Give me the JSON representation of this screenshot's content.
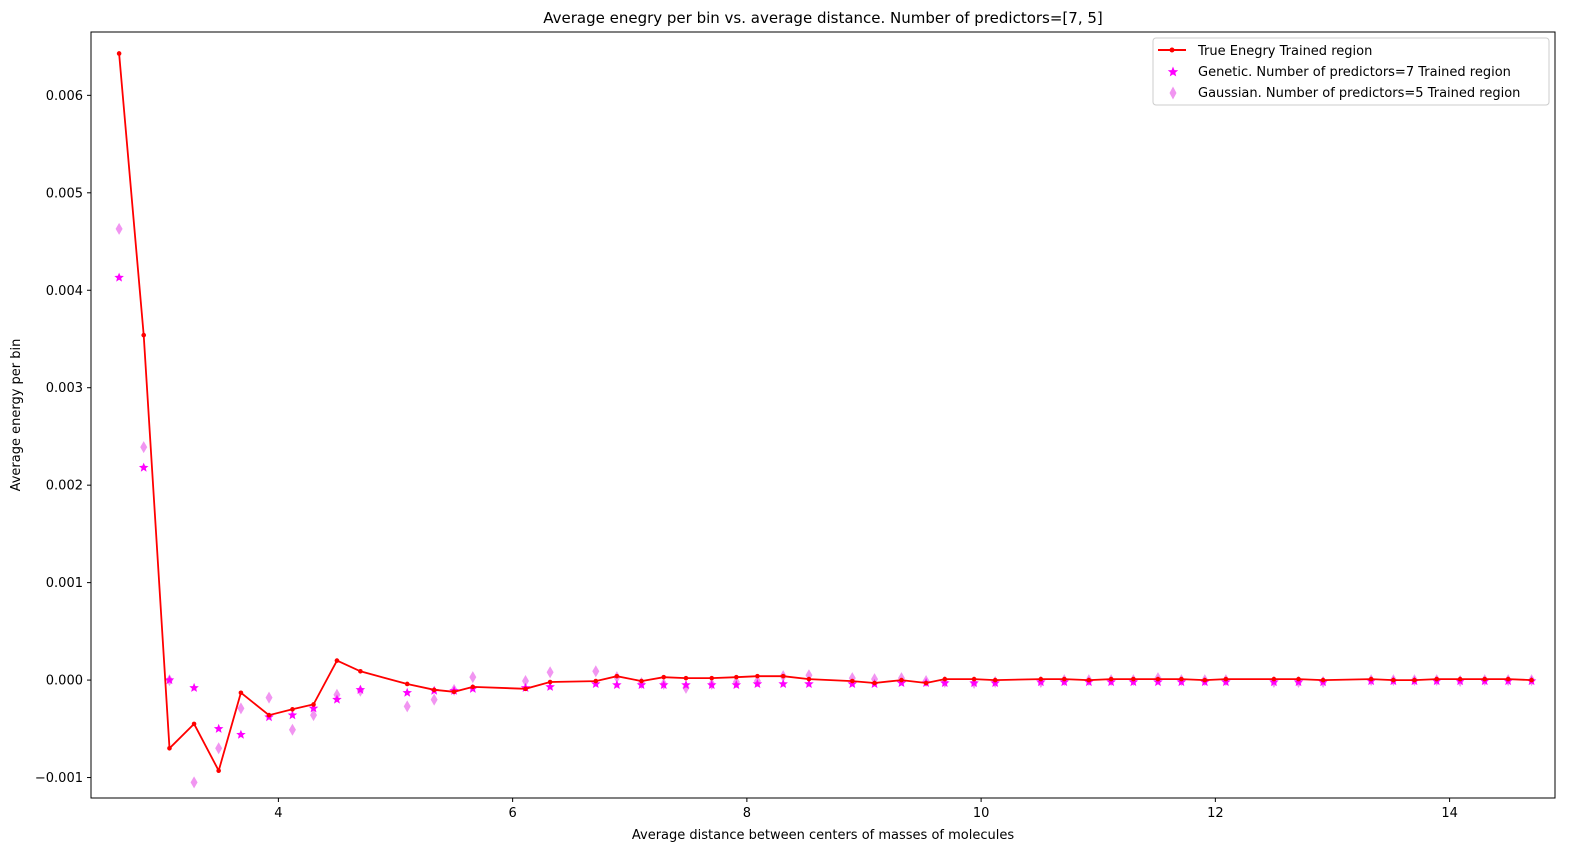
{
  "chart_data": {
    "type": "line",
    "title": "Average enegry per bin vs. average distance. Number of predictors=[7, 5]",
    "xlabel": "Average distance between centers of masses of molecules",
    "ylabel": "Average energy per bin",
    "xlim": [
      2.4,
      14.9
    ],
    "ylim": [
      -0.00121,
      0.00665
    ],
    "xticks": [
      4,
      6,
      8,
      10,
      12,
      14
    ],
    "xtick_labels": [
      "4",
      "6",
      "8",
      "10",
      "12",
      "14"
    ],
    "yticks": [
      -0.001,
      0.0,
      0.001,
      0.002,
      0.003,
      0.004,
      0.005,
      0.006
    ],
    "ytick_labels": [
      "−0.001",
      "0.000",
      "0.001",
      "0.002",
      "0.003",
      "0.004",
      "0.005",
      "0.006"
    ],
    "grid": false,
    "legend_position": "top-right",
    "series": [
      {
        "name": "True Enegry Trained region",
        "kind": "line",
        "color": "#ff0000",
        "marker": "dot",
        "x": [
          2.64,
          2.85,
          3.07,
          3.28,
          3.49,
          3.68,
          3.92,
          4.12,
          4.3,
          4.5,
          4.7,
          5.1,
          5.33,
          5.5,
          5.66,
          6.11,
          6.32,
          6.71,
          6.89,
          7.1,
          7.29,
          7.48,
          7.7,
          7.91,
          8.09,
          8.31,
          8.53,
          8.9,
          9.09,
          9.32,
          9.53,
          9.69,
          9.94,
          10.12,
          10.51,
          10.71,
          10.92,
          11.11,
          11.3,
          11.51,
          11.71,
          11.91,
          12.09,
          12.5,
          12.71,
          12.92,
          13.33,
          13.52,
          13.7,
          13.89,
          14.09,
          14.3,
          14.5,
          14.7
        ],
        "y": [
          0.00643,
          0.00354,
          -0.0007,
          -0.00045,
          -0.00093,
          -0.00013,
          -0.00036,
          -0.0003,
          -0.00025,
          0.0002,
          9e-05,
          -4e-05,
          -0.0001,
          -0.00012,
          -7e-05,
          -9e-05,
          -2e-05,
          -1e-05,
          4e-05,
          -1e-05,
          3e-05,
          2e-05,
          2e-05,
          3e-05,
          4e-05,
          4e-05,
          1e-05,
          -1e-05,
          -3e-05,
          0.0,
          -3e-05,
          1e-05,
          1e-05,
          0.0,
          1e-05,
          1e-05,
          0.0,
          1e-05,
          1e-05,
          1e-05,
          1e-05,
          0.0,
          1e-05,
          1e-05,
          1e-05,
          0.0,
          1e-05,
          0.0,
          0.0,
          1e-05,
          1e-05,
          1e-05,
          1e-05,
          0.0
        ]
      },
      {
        "name": "Genetic. Number of predictors=7 Trained region",
        "kind": "scatter",
        "color": "#ff00ff",
        "marker": "star",
        "x": [
          2.64,
          2.85,
          3.07,
          3.28,
          3.49,
          3.68,
          3.92,
          4.12,
          4.3,
          4.5,
          4.7,
          5.1,
          5.33,
          5.5,
          5.66,
          6.11,
          6.32,
          6.71,
          6.89,
          7.1,
          7.29,
          7.48,
          7.7,
          7.91,
          8.09,
          8.31,
          8.53,
          8.9,
          9.09,
          9.32,
          9.53,
          9.69,
          9.94,
          10.12,
          10.51,
          10.71,
          10.92,
          11.11,
          11.3,
          11.51,
          11.71,
          11.91,
          12.09,
          12.5,
          12.71,
          12.92,
          13.33,
          13.52,
          13.7,
          13.89,
          14.09,
          14.3,
          14.5,
          14.7
        ],
        "y": [
          0.00413,
          0.00218,
          0.0,
          -8e-05,
          -0.0005,
          -0.00056,
          -0.00038,
          -0.00036,
          -0.00029,
          -0.0002,
          -0.0001,
          -0.00013,
          -0.00011,
          -0.00011,
          -9e-05,
          -8e-05,
          -7e-05,
          -4e-05,
          -5e-05,
          -5e-05,
          -5e-05,
          -5e-05,
          -5e-05,
          -5e-05,
          -4e-05,
          -4e-05,
          -4e-05,
          -4e-05,
          -4e-05,
          -3e-05,
          -3e-05,
          -3e-05,
          -3e-05,
          -3e-05,
          -2e-05,
          -2e-05,
          -2e-05,
          -2e-05,
          -2e-05,
          -2e-05,
          -2e-05,
          -2e-05,
          -2e-05,
          -2e-05,
          -2e-05,
          -2e-05,
          -1e-05,
          -1e-05,
          -1e-05,
          -1e-05,
          -1e-05,
          -1e-05,
          -1e-05,
          -1e-05
        ]
      },
      {
        "name": "Gaussian. Number of predictors=5 Trained region",
        "kind": "scatter",
        "color": "#ee82ee",
        "marker": "thin-diamond",
        "x": [
          2.64,
          2.85,
          3.07,
          3.28,
          3.49,
          3.68,
          3.92,
          4.12,
          4.3,
          4.5,
          4.7,
          5.1,
          5.33,
          5.5,
          5.66,
          6.11,
          6.32,
          6.71,
          6.89,
          7.1,
          7.29,
          7.48,
          7.7,
          7.91,
          8.09,
          8.31,
          8.53,
          8.9,
          9.09,
          9.32,
          9.53,
          9.69,
          9.94,
          10.12,
          10.51,
          10.71,
          10.92,
          11.11,
          11.3,
          11.51,
          11.71,
          11.91,
          12.09,
          12.5,
          12.71,
          12.92,
          13.33,
          13.52,
          13.7,
          13.89,
          14.09,
          14.3,
          14.5,
          14.7
        ],
        "y": [
          0.00463,
          0.00239,
          0.0,
          -0.00105,
          -0.0007,
          -0.00029,
          -0.00018,
          -0.00051,
          -0.00036,
          -0.00015,
          -0.00011,
          -0.00027,
          -0.0002,
          -0.0001,
          3e-05,
          -1e-05,
          8e-05,
          9e-05,
          3e-05,
          -3e-05,
          -4e-05,
          -8e-05,
          -4e-05,
          -2e-05,
          -1e-05,
          4e-05,
          5e-05,
          2e-05,
          1e-05,
          2e-05,
          -1e-05,
          -2e-05,
          -3e-05,
          -2e-05,
          -2e-05,
          0.0,
          0.0,
          0.0,
          0.0,
          2e-05,
          0.0,
          0.0,
          0.0,
          -2e-05,
          -2e-05,
          -2e-05,
          0.0,
          0.0,
          0.0,
          0.0,
          -1e-05,
          0.0,
          0.0,
          0.0
        ]
      }
    ]
  }
}
